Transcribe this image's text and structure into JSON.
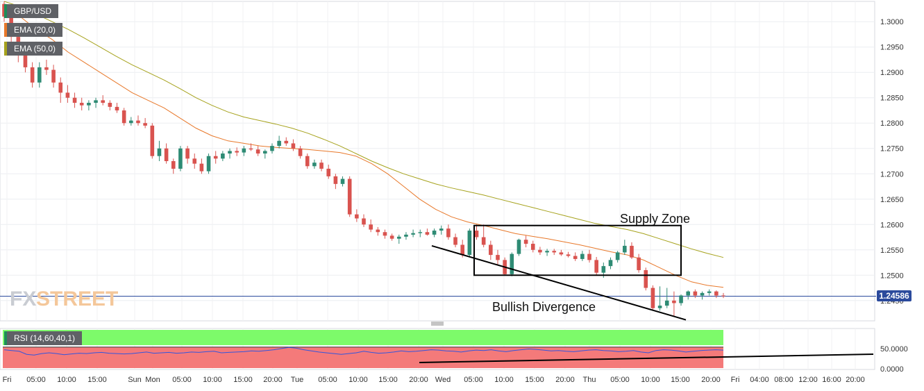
{
  "legend": {
    "symbol": "GBP/USD",
    "ema20": "EMA (20,0)",
    "ema50": "EMA (50,0)",
    "rsi": "RSI (14,60,40,1)"
  },
  "watermark": {
    "part1": "FX",
    "part2": "STREET"
  },
  "annotations": {
    "supply_zone": "Supply Zone",
    "bullish_divergence": "Bullish Divergence"
  },
  "colors": {
    "up": "#2e8b74",
    "down": "#d9534f",
    "ema20": "#e8782a",
    "ema50": "#a6a21c",
    "rsi_line": "#3355dd",
    "rsi_overbought": "#7dfa6a",
    "rsi_oversold": "#f47a7a",
    "price_line": "#2b4a9c"
  },
  "chart_data": [
    {
      "type": "candlestick",
      "symbol": "GBP/USD",
      "ylim": [
        1.241,
        1.304
      ],
      "price_ticks": [
        "1.3000",
        "1.2950",
        "1.2900",
        "1.2850",
        "1.2800",
        "1.2750",
        "1.2700",
        "1.2650",
        "1.2600",
        "1.2550",
        "1.2500",
        "1.2450"
      ],
      "last_price": "1.24586",
      "x_labels": [
        "Fri",
        "05:00",
        "10:00",
        "15:00",
        "Sun",
        "Mon",
        "05:00",
        "10:00",
        "15:00",
        "20:00",
        "Tue",
        "05:00",
        "10:00",
        "15:00",
        "20:00",
        "Wed",
        "05:00",
        "10:00",
        "15:00",
        "20:00",
        "Thu",
        "05:00",
        "10:00",
        "15:00",
        "20:00",
        "Fri",
        "04:00",
        "08:00",
        "12:00",
        "16:00",
        "20:00"
      ],
      "candles": [
        [
          1.3035,
          1.304,
          1.3,
          1.301
        ],
        [
          1.301,
          1.3025,
          1.296,
          1.297
        ],
        [
          1.297,
          1.299,
          1.292,
          1.294
        ],
        [
          1.294,
          1.2955,
          1.29,
          1.291
        ],
        [
          1.291,
          1.292,
          1.287,
          1.288
        ],
        [
          1.288,
          1.292,
          1.287,
          1.291
        ],
        [
          1.291,
          1.2925,
          1.2895,
          1.2905
        ],
        [
          1.2905,
          1.2915,
          1.287,
          1.288
        ],
        [
          1.288,
          1.289,
          1.284,
          1.286
        ],
        [
          1.286,
          1.2875,
          1.284,
          1.285
        ],
        [
          1.285,
          1.286,
          1.283,
          1.284
        ],
        [
          1.284,
          1.285,
          1.2825,
          1.2835
        ],
        [
          1.2835,
          1.2845,
          1.2825,
          1.284
        ],
        [
          1.284,
          1.285,
          1.283,
          1.2845
        ],
        [
          1.2845,
          1.2855,
          1.2835,
          1.284
        ],
        [
          1.284,
          1.2845,
          1.2825,
          1.2832
        ],
        [
          1.2832,
          1.284,
          1.282,
          1.2825
        ],
        [
          1.2825,
          1.283,
          1.2795,
          1.28
        ],
        [
          1.28,
          1.2812,
          1.2795,
          1.2805
        ],
        [
          1.2805,
          1.2815,
          1.2795,
          1.28
        ],
        [
          1.28,
          1.281,
          1.279,
          1.2795
        ],
        [
          1.2795,
          1.28,
          1.273,
          1.2735
        ],
        [
          1.2735,
          1.2765,
          1.2725,
          1.275
        ],
        [
          1.275,
          1.276,
          1.272,
          1.2725
        ],
        [
          1.2725,
          1.273,
          1.27,
          1.271
        ],
        [
          1.271,
          1.2755,
          1.2705,
          1.275
        ],
        [
          1.275,
          1.2755,
          1.272,
          1.273
        ],
        [
          1.273,
          1.274,
          1.271,
          1.272
        ],
        [
          1.272,
          1.273,
          1.27,
          1.2705
        ],
        [
          1.2705,
          1.274,
          1.27,
          1.2735
        ],
        [
          1.2735,
          1.2745,
          1.272,
          1.273
        ],
        [
          1.273,
          1.2745,
          1.2725,
          1.274
        ],
        [
          1.274,
          1.275,
          1.273,
          1.2745
        ],
        [
          1.2745,
          1.2752,
          1.2735,
          1.2742
        ],
        [
          1.2742,
          1.2755,
          1.2735,
          1.275
        ],
        [
          1.275,
          1.276,
          1.2745,
          1.2748
        ],
        [
          1.2748,
          1.2755,
          1.2735,
          1.274
        ],
        [
          1.274,
          1.2748,
          1.273,
          1.2745
        ],
        [
          1.2745,
          1.276,
          1.274,
          1.2755
        ],
        [
          1.2755,
          1.2775,
          1.275,
          1.2765
        ],
        [
          1.2765,
          1.2772,
          1.2755,
          1.276
        ],
        [
          1.276,
          1.2768,
          1.2745,
          1.275
        ],
        [
          1.275,
          1.2755,
          1.273,
          1.2735
        ],
        [
          1.2735,
          1.274,
          1.271,
          1.2715
        ],
        [
          1.2715,
          1.2728,
          1.271,
          1.2722
        ],
        [
          1.2722,
          1.2728,
          1.2705,
          1.271
        ],
        [
          1.271,
          1.2718,
          1.269,
          1.2695
        ],
        [
          1.2695,
          1.27,
          1.267,
          1.268
        ],
        [
          1.268,
          1.2695,
          1.2675,
          1.269
        ],
        [
          1.269,
          1.2695,
          1.2615,
          1.262
        ],
        [
          1.262,
          1.263,
          1.2605,
          1.2612
        ],
        [
          1.2612,
          1.262,
          1.2595,
          1.26
        ],
        [
          1.26,
          1.261,
          1.2585,
          1.259
        ],
        [
          1.259,
          1.2595,
          1.2578,
          1.2585
        ],
        [
          1.2585,
          1.259,
          1.2572,
          1.2578
        ],
        [
          1.2578,
          1.2582,
          1.2568,
          1.2572
        ],
        [
          1.2572,
          1.258,
          1.2562,
          1.2576
        ],
        [
          1.2576,
          1.2585,
          1.257,
          1.258
        ],
        [
          1.258,
          1.259,
          1.2575,
          1.2583
        ],
        [
          1.2583,
          1.259,
          1.2575,
          1.2585
        ],
        [
          1.2585,
          1.2592,
          1.2578,
          1.258
        ],
        [
          1.258,
          1.2592,
          1.2575,
          1.2588
        ],
        [
          1.2588,
          1.2598,
          1.258,
          1.2592
        ],
        [
          1.2592,
          1.26,
          1.257,
          1.2575
        ],
        [
          1.2575,
          1.2582,
          1.2555,
          1.256
        ],
        [
          1.256,
          1.257,
          1.2535,
          1.254
        ],
        [
          1.254,
          1.2592,
          1.2535,
          1.2588
        ],
        [
          1.2588,
          1.26,
          1.257,
          1.2575
        ],
        [
          1.2575,
          1.26,
          1.2555,
          1.256
        ],
        [
          1.256,
          1.2568,
          1.253,
          1.254
        ],
        [
          1.254,
          1.255,
          1.252,
          1.253
        ],
        [
          1.253,
          1.2535,
          1.25,
          1.2502
        ],
        [
          1.2502,
          1.2545,
          1.2498,
          1.2542
        ],
        [
          1.2542,
          1.2572,
          1.2538,
          1.257
        ],
        [
          1.257,
          1.2578,
          1.2555,
          1.2562
        ],
        [
          1.2562,
          1.2568,
          1.2545,
          1.255
        ],
        [
          1.255,
          1.2556,
          1.254,
          1.2545
        ],
        [
          1.2545,
          1.2552,
          1.2538,
          1.2548
        ],
        [
          1.2548,
          1.2552,
          1.254,
          1.2545
        ],
        [
          1.2545,
          1.255,
          1.2538,
          1.2541
        ],
        [
          1.2541,
          1.2546,
          1.2535,
          1.2538
        ],
        [
          1.2538,
          1.2545,
          1.2528,
          1.2532
        ],
        [
          1.2532,
          1.2548,
          1.2528,
          1.2542
        ],
        [
          1.2542,
          1.255,
          1.2525,
          1.253
        ],
        [
          1.253,
          1.2536,
          1.25,
          1.2505
        ],
        [
          1.2505,
          1.2525,
          1.2495,
          1.2518
        ],
        [
          1.2518,
          1.2535,
          1.2512,
          1.253
        ],
        [
          1.253,
          1.2548,
          1.2525,
          1.2545
        ],
        [
          1.2545,
          1.257,
          1.254,
          1.2558
        ],
        [
          1.2558,
          1.2565,
          1.2532,
          1.2535
        ],
        [
          1.2535,
          1.2542,
          1.2505,
          1.251
        ],
        [
          1.251,
          1.2515,
          1.247,
          1.2475
        ],
        [
          1.2475,
          1.248,
          1.243,
          1.2435
        ],
        [
          1.2435,
          1.2478,
          1.243,
          1.244
        ],
        [
          1.244,
          1.2475,
          1.2435,
          1.245
        ],
        [
          1.245,
          1.2468,
          1.2418,
          1.2445
        ],
        [
          1.2445,
          1.2462,
          1.244,
          1.246
        ],
        [
          1.246,
          1.247,
          1.2452,
          1.2468
        ],
        [
          1.2468,
          1.2472,
          1.2455,
          1.246
        ],
        [
          1.246,
          1.2468,
          1.2452,
          1.2465
        ],
        [
          1.2465,
          1.2472,
          1.246,
          1.2468
        ],
        [
          1.2468,
          1.247,
          1.2455,
          1.246
        ],
        [
          1.246,
          1.2465,
          1.2455,
          1.2459
        ]
      ],
      "ema20": [
        1.303,
        1.301,
        1.2985,
        1.2965,
        1.294,
        1.292,
        1.29,
        1.288,
        1.286,
        1.2845,
        1.283,
        1.281,
        1.279,
        1.2775,
        1.2765,
        1.276,
        1.2755,
        1.2752,
        1.275,
        1.2748,
        1.2745,
        1.2742,
        1.2735,
        1.272,
        1.27,
        1.2675,
        1.265,
        1.263,
        1.2615,
        1.2605,
        1.2598,
        1.259,
        1.2582,
        1.2577,
        1.2572,
        1.2566,
        1.256,
        1.2553,
        1.2546,
        1.254,
        1.253,
        1.2515,
        1.25,
        1.2487,
        1.248,
        1.2476
      ],
      "ema50": [
        1.304,
        1.303,
        1.3015,
        1.3,
        1.2985,
        1.2968,
        1.295,
        1.2932,
        1.2915,
        1.29,
        1.2885,
        1.2868,
        1.285,
        1.2835,
        1.2822,
        1.2812,
        1.2805,
        1.2798,
        1.279,
        1.278,
        1.2768,
        1.2755,
        1.274,
        1.2725,
        1.2712,
        1.27,
        1.269,
        1.268,
        1.2672,
        1.2665,
        1.2658,
        1.265,
        1.2642,
        1.2634,
        1.2626,
        1.2618,
        1.261,
        1.2602,
        1.2596,
        1.259,
        1.2582,
        1.2572,
        1.2562,
        1.2552,
        1.2543,
        1.2535
      ],
      "annotations": [
        {
          "type": "box",
          "label": "Supply Zone",
          "y_range": [
            1.25,
            1.2598
          ]
        },
        {
          "type": "trendline",
          "label": "Bullish Divergence",
          "from": 1.2558,
          "to": 1.2412
        }
      ]
    },
    {
      "type": "line",
      "name": "RSI (14,60,40,1)",
      "y_ticks": [
        "50.0000",
        "0.0000"
      ],
      "values": [
        48,
        46,
        44,
        36,
        34,
        38,
        40,
        38,
        35,
        37,
        39,
        38,
        40,
        41,
        39,
        38,
        37,
        38,
        40,
        42,
        39,
        40,
        41,
        39,
        40,
        42,
        41,
        43,
        44,
        40,
        41,
        42,
        43,
        45,
        44,
        46,
        48,
        51,
        54,
        52,
        48,
        45,
        42,
        40,
        38,
        36,
        38,
        40,
        44,
        41,
        39,
        40,
        42,
        45,
        43,
        44,
        46,
        48,
        47,
        45,
        44,
        42,
        45,
        47,
        46,
        48,
        45,
        43,
        46,
        48,
        50,
        49,
        47,
        45,
        46,
        44,
        43,
        45,
        47,
        48,
        46,
        45,
        43,
        44,
        46,
        42,
        40,
        46,
        48,
        47,
        45,
        42,
        44,
        46,
        47,
        48,
        47
      ]
    }
  ]
}
